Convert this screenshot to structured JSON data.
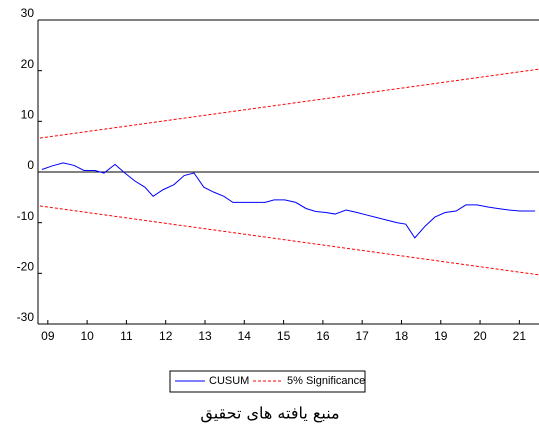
{
  "chart_data": {
    "type": "line",
    "x_ticks_note_free": null,
    "xlim": [
      2008.75,
      2021.5
    ],
    "ylim": [
      -30,
      30
    ],
    "xticks": [
      {
        "value": 2009,
        "label": "09"
      },
      {
        "value": 2010,
        "label": "10"
      },
      {
        "value": 2011,
        "label": "11"
      },
      {
        "value": 2012,
        "label": "12"
      },
      {
        "value": 2013,
        "label": "13"
      },
      {
        "value": 2014,
        "label": "14"
      },
      {
        "value": 2015,
        "label": "15"
      },
      {
        "value": 2016,
        "label": "16"
      },
      {
        "value": 2017,
        "label": "17"
      },
      {
        "value": 2018,
        "label": "18"
      },
      {
        "value": 2019,
        "label": "19"
      },
      {
        "value": 2020,
        "label": "20"
      },
      {
        "value": 2021,
        "label": "21"
      }
    ],
    "yticks": [
      -30,
      -20,
      -10,
      0,
      10,
      20,
      30
    ],
    "series": [
      {
        "name": "CUSUM",
        "color": "#0000ff",
        "x": [
          2008.85,
          2009.11,
          2009.39,
          2009.67,
          2009.92,
          2010.2,
          2010.43,
          2010.71,
          2010.96,
          2011.22,
          2011.47,
          2011.68,
          2011.93,
          2012.21,
          2012.47,
          2012.72,
          2012.97,
          2013.23,
          2013.48,
          2013.71,
          2013.99,
          2014.27,
          2014.53,
          2014.76,
          2015.03,
          2015.31,
          2015.57,
          2015.82,
          2016.08,
          2016.31,
          2016.59,
          2016.87,
          2017.12,
          2017.38,
          2017.63,
          2017.88,
          2018.11,
          2018.34,
          2018.6,
          2018.85,
          2019.11,
          2019.39,
          2019.64,
          2019.92,
          2020.2,
          2020.45,
          2020.73,
          2021.01,
          2021.4
        ],
        "values": [
          0.5,
          1.2,
          1.8,
          1.3,
          0.3,
          0.3,
          -0.2,
          1.5,
          -0.2,
          -1.8,
          -3,
          -4.8,
          -3.5,
          -2.5,
          -0.7,
          -0.2,
          -3,
          -4,
          -4.8,
          -6,
          -6,
          -6,
          -6,
          -5.5,
          -5.5,
          -6,
          -7.2,
          -7.8,
          -8,
          -8.3,
          -7.5,
          -8,
          -8.5,
          -9,
          -9.5,
          -10,
          -10.3,
          -13,
          -10.7,
          -8.9,
          -8,
          -7.7,
          -6.5,
          -6.5,
          -6.9,
          -7.2,
          -7.5,
          -7.7,
          -7.7
        ]
      },
      {
        "name": "5% Significance",
        "color": "#ff0000",
        "x": [
          2008.8,
          2021.5
        ],
        "values": [
          6.7,
          20.3
        ],
        "lower": [
          -6.7,
          -20.3
        ]
      }
    ],
    "caption": "منبع یافته های تحقیق"
  }
}
